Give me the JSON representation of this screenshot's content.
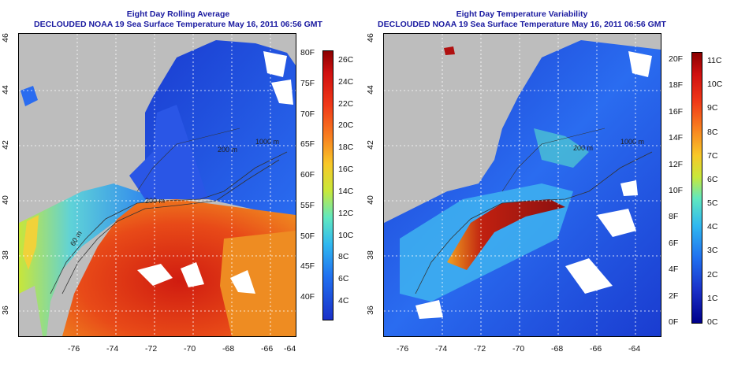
{
  "left_panel": {
    "title": "Eight Day Rolling Average",
    "subtitle": "DECLOUDED NOAA 19 Sea Surface Temperature May 16, 2011 06:56 GMT",
    "colorbar": {
      "fahrenheit_labels": [
        "80F",
        "75F",
        "70F",
        "65F",
        "60F",
        "55F",
        "50F",
        "45F",
        "40F"
      ],
      "celsius_labels": [
        "26C",
        "24C",
        "22C",
        "20C",
        "18C",
        "16C",
        "14C",
        "12C",
        "10C",
        "8C",
        "6C",
        "4C"
      ]
    },
    "contour_labels": [
      "200 m",
      "1000 m",
      "200 m",
      "60 m"
    ]
  },
  "right_panel": {
    "title": "Eight Day Temperature Variability",
    "subtitle": "DECLOUDED NOAA 19 Sea Surface Temperature May 16, 2011 06:56 GMT",
    "colorbar": {
      "fahrenheit_labels": [
        "20F",
        "18F",
        "16F",
        "14F",
        "12F",
        "10F",
        "8F",
        "6F",
        "4F",
        "2F",
        "0F"
      ],
      "celsius_labels": [
        "11C",
        "10C",
        "9C",
        "8C",
        "7C",
        "6C",
        "5C",
        "4C",
        "3C",
        "2C",
        "1C",
        "0C"
      ]
    },
    "contour_labels": [
      "200 m",
      "1000 m"
    ]
  },
  "axes": {
    "x_ticks": [
      "-76",
      "-74",
      "-72",
      "-70",
      "-68",
      "-66",
      "-64"
    ],
    "y_ticks": [
      "36",
      "38",
      "40",
      "42",
      "44",
      "46"
    ]
  },
  "colors": {
    "title": "#1a1aa0",
    "land": "#bdbdbd",
    "cloud": "#ffffff"
  }
}
